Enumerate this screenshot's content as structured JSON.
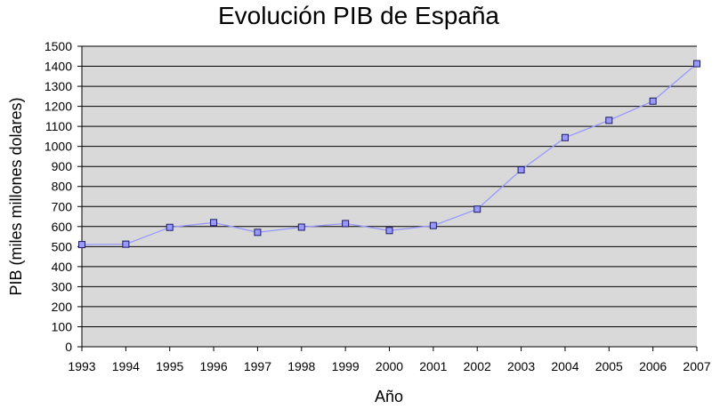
{
  "chart_data": {
    "type": "line",
    "title": "Evolución PIB de España",
    "xlabel": "Año",
    "ylabel": "PIB (miles millones dolares)",
    "categories": [
      "1993",
      "1994",
      "1995",
      "1996",
      "1997",
      "1998",
      "1999",
      "2000",
      "2001",
      "2002",
      "2003",
      "2004",
      "2005",
      "2006",
      "2007"
    ],
    "series": [
      {
        "values": [
          510,
          512,
          596,
          620,
          571,
          597,
          615,
          580,
          605,
          687,
          883,
          1044,
          1130,
          1226,
          1413
        ],
        "color": "#9999ff"
      }
    ],
    "ylim": [
      0,
      1500
    ],
    "yticks": [
      0,
      100,
      200,
      300,
      400,
      500,
      600,
      700,
      800,
      900,
      1000,
      1100,
      1200,
      1300,
      1400,
      1500
    ],
    "grid": true,
    "plot_background": "#d9d9d9",
    "marker_fill": "#9999ff",
    "marker_stroke": "#1a1a66"
  }
}
